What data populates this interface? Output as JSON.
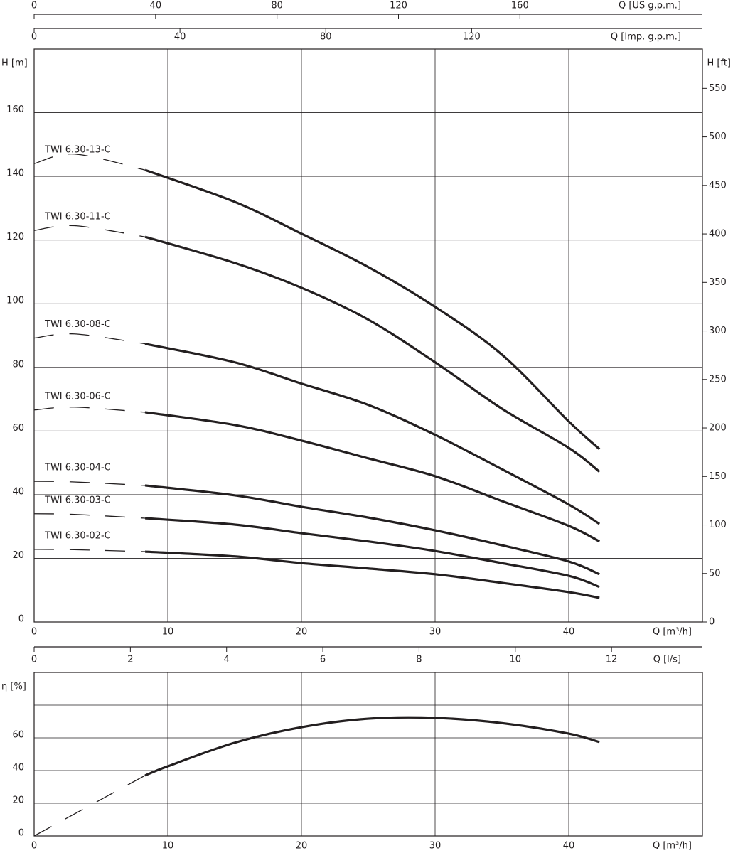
{
  "chart_data": [
    {
      "type": "line",
      "x_label": "Q [m³/h]",
      "xlim": [
        0,
        50
      ],
      "xticks": [
        0,
        10,
        20,
        30,
        40
      ],
      "y_label": "H [m]",
      "ylim": [
        0,
        180
      ],
      "yticks": [
        0,
        20,
        40,
        60,
        80,
        100,
        120,
        140,
        160
      ],
      "y2_label": "H [ft]",
      "y2lim": [
        0,
        590.55
      ],
      "y2ticks": [
        0,
        50,
        100,
        150,
        200,
        250,
        300,
        350,
        400,
        450,
        500,
        550
      ],
      "top_axes": [
        {
          "label": "Q [US g.p.m.]",
          "xlim": [
            0,
            220.1
          ],
          "xticks": [
            0,
            40,
            80,
            120,
            160
          ]
        },
        {
          "label": "Q [Imp. g.p.m.]",
          "xlim": [
            0,
            183.3
          ],
          "xticks": [
            0,
            40,
            80,
            120
          ]
        }
      ],
      "grid": true,
      "color": "#231f20",
      "dashed_below": 8.3,
      "x": [
        0,
        3,
        8.3,
        15,
        20,
        25,
        30,
        35,
        40,
        42.3
      ],
      "series": [
        {
          "name": "TWI 6.30-13-C",
          "values": [
            144,
            147,
            142,
            132,
            122,
            111.5,
            99,
            84,
            63,
            54.3
          ]
        },
        {
          "name": "TWI 6.30-11-C",
          "values": [
            123,
            124.5,
            121,
            112.8,
            105,
            95,
            81.6,
            67,
            54.7,
            47.2
          ]
        },
        {
          "name": "TWI 6.30-08-C",
          "values": [
            89.2,
            90.5,
            87.4,
            81.6,
            74.9,
            68.2,
            58.8,
            48,
            36.9,
            30.8
          ]
        },
        {
          "name": "TWI 6.30-06-C",
          "values": [
            66.6,
            67.5,
            65.9,
            61.9,
            57,
            51.4,
            45.8,
            38,
            30.2,
            25.3
          ]
        },
        {
          "name": "TWI 6.30-04-C",
          "values": [
            44.2,
            44,
            42.9,
            39.8,
            36.2,
            32.8,
            28.8,
            24.1,
            19,
            15
          ]
        },
        {
          "name": "TWI 6.30-03-C",
          "values": [
            34,
            33.8,
            32.6,
            30.6,
            27.9,
            25.3,
            22.3,
            18.5,
            14.5,
            11
          ]
        },
        {
          "name": "TWI 6.30-02-C",
          "values": [
            22.8,
            22.7,
            22.1,
            20.6,
            18.5,
            16.8,
            15,
            12.3,
            9.4,
            7.6
          ]
        }
      ]
    },
    {
      "type": "line",
      "x_label": "Q [m³/h]",
      "xlim": [
        0,
        50
      ],
      "xticks": [
        0,
        10,
        20,
        30,
        40
      ],
      "y_label": "η [%]",
      "ylim": [
        0,
        100
      ],
      "yticks": [
        0,
        20,
        40,
        60
      ],
      "ygrid": [
        20,
        40,
        60,
        80
      ],
      "top_axes": [
        {
          "label": "Q [l/s]",
          "xlim": [
            0,
            13.889
          ],
          "xticks": [
            0,
            2,
            4,
            6,
            8,
            10,
            12
          ]
        }
      ],
      "grid": true,
      "color": "#231f20",
      "dashed_below": 8.3,
      "x": [
        0,
        8.3,
        10,
        15,
        20,
        25,
        30,
        35,
        40,
        42.3
      ],
      "series": [
        {
          "values": [
            0,
            37,
            42.6,
            57,
            66.5,
            71.7,
            72.2,
            69,
            62.6,
            57.4
          ]
        }
      ]
    }
  ]
}
